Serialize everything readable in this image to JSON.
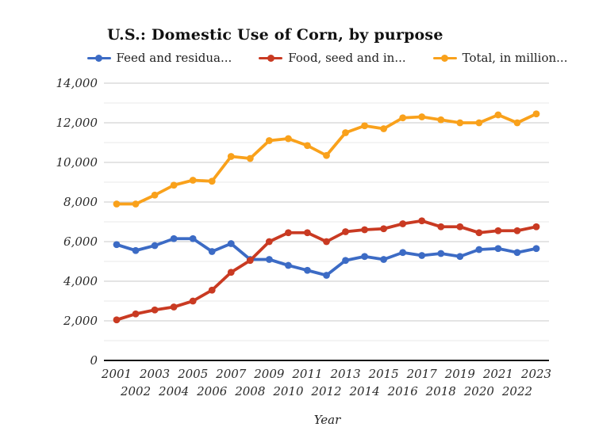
{
  "header": {
    "title": "U.S.: Domestic Use of Corn, by purpose"
  },
  "legend": [
    {
      "label": "Feed and residua...",
      "color": "#3C6BC5"
    },
    {
      "label": "Food, seed and in...",
      "color": "#C93A22"
    },
    {
      "label": "Total, in million...",
      "color": "#F9A11B"
    }
  ],
  "axes": {
    "x_label": "Year",
    "y_tick_values": [
      0,
      2000,
      4000,
      6000,
      8000,
      10000,
      12000,
      14000
    ],
    "y_tick_labels": [
      "0",
      "2,000",
      "4,000",
      "6,000",
      "8,000",
      "10,000",
      "12,000",
      "14,000"
    ]
  },
  "colors": {
    "grid_major": "#c9c9c9",
    "grid_minor": "#e9e9e9",
    "axis_line": "#111111",
    "tick_text": "#2a2a2a"
  },
  "chart_data": {
    "type": "line",
    "title": "U.S.: Domestic Use of Corn, by purpose",
    "xlabel": "Year",
    "ylabel": "",
    "ylim": [
      0,
      14000
    ],
    "y_major_step": 2000,
    "y_minor_step": 1000,
    "grid": true,
    "legend_position": "top",
    "x": [
      2001,
      2002,
      2003,
      2004,
      2005,
      2006,
      2007,
      2008,
      2009,
      2010,
      2011,
      2012,
      2013,
      2014,
      2015,
      2016,
      2017,
      2018,
      2019,
      2020,
      2021,
      2022,
      2023
    ],
    "series": [
      {
        "name": "Feed and residua...",
        "color": "#3C6BC5",
        "values": [
          5850,
          5550,
          5800,
          6150,
          6150,
          5500,
          5900,
          5100,
          5100,
          4800,
          4550,
          4300,
          5050,
          5250,
          5100,
          5450,
          5300,
          5400,
          5250,
          5600,
          5650,
          5450,
          5650
        ]
      },
      {
        "name": "Food, seed and in...",
        "color": "#C93A22",
        "values": [
          2050,
          2350,
          2550,
          2700,
          3000,
          3550,
          4450,
          5050,
          6000,
          6450,
          6450,
          6000,
          6500,
          6600,
          6650,
          6900,
          7050,
          6750,
          6750,
          6450,
          6550,
          6550,
          6750
        ]
      },
      {
        "name": "Total, in million...",
        "color": "#F9A11B",
        "values": [
          7900,
          7900,
          8350,
          8850,
          9100,
          9050,
          10300,
          10200,
          11100,
          11200,
          10850,
          10350,
          11500,
          11850,
          11700,
          12250,
          12300,
          12150,
          12000,
          12000,
          12400,
          12000,
          12450
        ]
      }
    ]
  }
}
